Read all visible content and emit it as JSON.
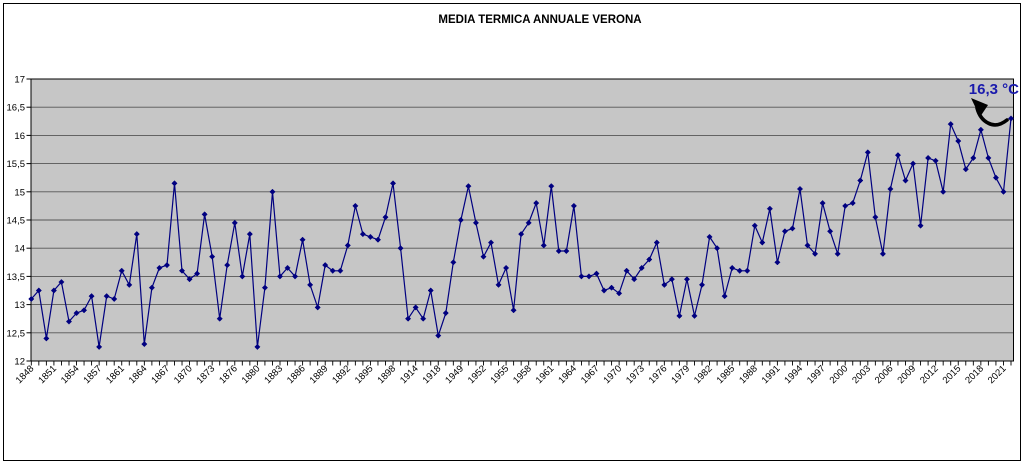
{
  "title": "MEDIA TERMICA ANNUALE VERONA",
  "annotation": {
    "text": "16,3 °C",
    "color": "#1a1aad"
  },
  "colors": {
    "plot_bg": "#c6c6c6",
    "gridline": "#555555",
    "axis": "#000000",
    "series": "#000080",
    "frame_border": "#000000"
  },
  "y_axis": {
    "tick_labels": [
      "17",
      "16,5",
      "16",
      "15,5",
      "15",
      "14,5",
      "14",
      "13,5",
      "13",
      "12,5",
      "12"
    ]
  },
  "chart_data": {
    "type": "line",
    "title": "MEDIA TERMICA ANNUALE VERONA",
    "ylabel": "",
    "xlabel": "",
    "ylim": [
      12,
      17
    ],
    "y_step": 0.5,
    "grid": true,
    "legend": "none",
    "marker": "diamond",
    "series_color": "#000080",
    "annotation": "16,3 °C (last point)",
    "x_tick_labels": [
      "1848",
      "1851",
      "1854",
      "1857",
      "1861",
      "1864",
      "1867",
      "1870",
      "1873",
      "1876",
      "1880",
      "1883",
      "1886",
      "1889",
      "1892",
      "1895",
      "1898",
      "1914",
      "1918",
      "1949",
      "1952",
      "1955",
      "1958",
      "1961",
      "1964",
      "1967",
      "1970",
      "1973",
      "1976",
      "1979",
      "1982",
      "1985",
      "1988",
      "1991",
      "1994",
      "1997",
      "2000",
      "2003",
      "2006",
      "2009",
      "2012",
      "2015",
      "2018",
      "2021"
    ],
    "label_every": 3,
    "values": [
      13.1,
      13.25,
      12.4,
      13.25,
      13.4,
      12.7,
      12.85,
      12.9,
      13.15,
      12.25,
      13.15,
      13.1,
      13.6,
      13.35,
      14.25,
      12.3,
      13.3,
      13.65,
      13.7,
      15.15,
      13.6,
      13.45,
      13.55,
      14.6,
      13.85,
      12.75,
      13.7,
      14.45,
      13.5,
      14.25,
      12.25,
      13.3,
      15.0,
      13.5,
      13.65,
      13.5,
      14.15,
      13.35,
      12.95,
      13.7,
      13.6,
      13.6,
      14.05,
      14.75,
      14.25,
      14.2,
      14.15,
      14.55,
      15.15,
      14.0,
      12.75,
      12.95,
      12.75,
      13.25,
      12.45,
      12.85,
      13.75,
      14.5,
      15.1,
      14.45,
      13.85,
      14.1,
      13.35,
      13.65,
      12.9,
      14.25,
      14.45,
      14.8,
      14.05,
      15.1,
      13.95,
      13.95,
      14.75,
      13.5,
      13.5,
      13.55,
      13.25,
      13.3,
      13.2,
      13.6,
      13.45,
      13.65,
      13.8,
      14.1,
      13.35,
      13.45,
      12.8,
      13.45,
      12.8,
      13.35,
      14.2,
      14.0,
      13.15,
      13.65,
      13.6,
      13.6,
      14.4,
      14.1,
      14.7,
      13.75,
      14.3,
      14.35,
      15.05,
      14.05,
      13.9,
      14.8,
      14.3,
      13.9,
      14.75,
      14.8,
      15.2,
      15.7,
      14.55,
      13.9,
      15.05,
      15.65,
      15.2,
      15.5,
      14.4,
      15.6,
      15.55,
      15.0,
      16.2,
      15.9,
      15.4,
      15.6,
      16.1,
      15.6,
      15.25,
      15.0,
      16.3
    ]
  }
}
